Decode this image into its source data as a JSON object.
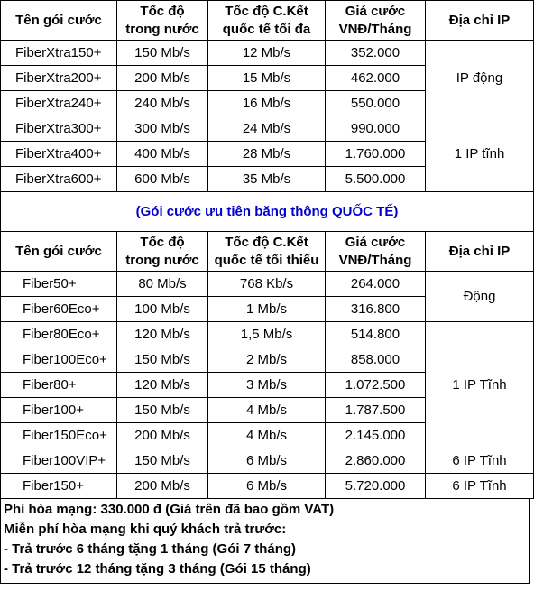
{
  "table1": {
    "headers": [
      "Tên gói cước",
      "Tốc độ\ntrong nước",
      "Tốc độ C.Kết\nquốc tế tối đa",
      "Giá cước\nVNĐ/Tháng",
      "Địa chỉ IP"
    ],
    "rows": [
      {
        "name": "FiberXtra150+",
        "domestic": "150 Mb/s",
        "intl": "12 Mb/s",
        "price": "352.000"
      },
      {
        "name": "FiberXtra200+",
        "domestic": "200 Mb/s",
        "intl": "15 Mb/s",
        "price": "462.000"
      },
      {
        "name": "FiberXtra240+",
        "domestic": "240 Mb/s",
        "intl": "16 Mb/s",
        "price": "550.000"
      },
      {
        "name": "FiberXtra300+",
        "domestic": "300 Mb/s",
        "intl": "24 Mb/s",
        "price": "990.000"
      },
      {
        "name": "FiberXtra400+",
        "domestic": "400 Mb/s",
        "intl": "28 Mb/s",
        "price": "1.760.000"
      },
      {
        "name": "FiberXtra600+",
        "domestic": "600 Mb/s",
        "intl": "35 Mb/s",
        "price": "5.500.000"
      }
    ],
    "ip_groups": [
      "IP động",
      "1 IP tĩnh"
    ]
  },
  "section_title": "(Gói cước ưu tiên băng thông QUỐC TẾ)",
  "table2": {
    "headers": [
      "Tên gói cước",
      "Tốc độ\ntrong nước",
      "Tốc độ C.Kết\nquốc tế tối thiểu",
      "Giá cước\nVNĐ/Tháng",
      "Địa chỉ IP"
    ],
    "rows": [
      {
        "name": "Fiber50+",
        "domestic": "80 Mb/s",
        "intl": "768 Kb/s",
        "price": "264.000"
      },
      {
        "name": "Fiber60Eco+",
        "domestic": "100 Mb/s",
        "intl": "1 Mb/s",
        "price": "316.800"
      },
      {
        "name": "Fiber80Eco+",
        "domestic": "120 Mb/s",
        "intl": "1,5 Mb/s",
        "price": "514.800"
      },
      {
        "name": "Fiber100Eco+",
        "domestic": "150 Mb/s",
        "intl": "2 Mb/s",
        "price": "858.000"
      },
      {
        "name": "Fiber80+",
        "domestic": "120 Mb/s",
        "intl": "3 Mb/s",
        "price": "1.072.500"
      },
      {
        "name": "Fiber100+",
        "domestic": "150 Mb/s",
        "intl": "4 Mb/s",
        "price": "1.787.500"
      },
      {
        "name": "Fiber150Eco+",
        "domestic": "200 Mb/s",
        "intl": "4 Mb/s",
        "price": "2.145.000"
      },
      {
        "name": "Fiber100VIP+",
        "domestic": "150 Mb/s",
        "intl": "6 Mb/s",
        "price": "2.860.000"
      },
      {
        "name": "Fiber150+",
        "domestic": "200 Mb/s",
        "intl": "6 Mb/s",
        "price": "5.720.000"
      }
    ],
    "ip_groups": [
      "Động",
      "1 IP Tĩnh",
      "6 IP Tĩnh",
      "6 IP Tĩnh"
    ]
  },
  "footer": [
    "Phí hòa mạng: 330.000 đ (Giá trên đã bao gồm VAT)",
    "Miễn phí hòa mạng khi quý khách trả trước:",
    "- Trả trước 6 tháng tặng 1 tháng (Gói 7 tháng)",
    "- Trả trước 12 tháng tặng 3 tháng (Gói 15 tháng)"
  ]
}
